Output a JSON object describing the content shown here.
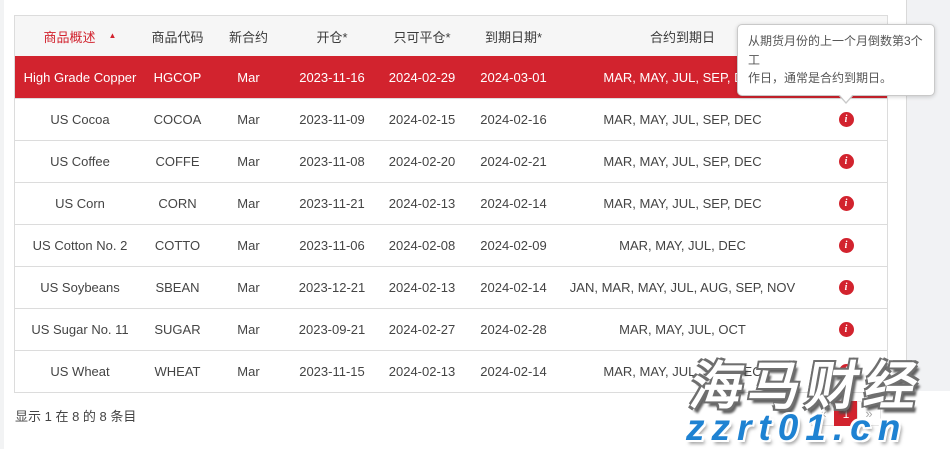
{
  "colors": {
    "accent_red": "#d2232e",
    "watermark_blue": "#1e82d2"
  },
  "tooltip": {
    "line1": "从期货月份的上一个月倒数第3个工",
    "line2": "作日，通常是合约到期日。"
  },
  "table": {
    "sort_icon": "▲",
    "info_icon_glyph": "i",
    "headers": {
      "overview": "商品概述",
      "code": "商品代码",
      "new_contract": "新合约",
      "open": "开仓*",
      "close_only": "只可平仓*",
      "expiry_date": "到期日期*",
      "contract_expiry": "合约到期日"
    },
    "rows": [
      {
        "name": "High Grade Copper",
        "code": "HGCOP",
        "new_contract": "Mar",
        "open": "2023-11-16",
        "close_only": "2024-02-29",
        "expiry_date": "2024-03-01",
        "months": "MAR, MAY, JUL, SEP, DEC"
      },
      {
        "name": "US Cocoa",
        "code": "COCOA",
        "new_contract": "Mar",
        "open": "2023-11-09",
        "close_only": "2024-02-15",
        "expiry_date": "2024-02-16",
        "months": "MAR, MAY, JUL, SEP, DEC"
      },
      {
        "name": "US Coffee",
        "code": "COFFE",
        "new_contract": "Mar",
        "open": "2023-11-08",
        "close_only": "2024-02-20",
        "expiry_date": "2024-02-21",
        "months": "MAR, MAY, JUL, SEP, DEC"
      },
      {
        "name": "US Corn",
        "code": "CORN",
        "new_contract": "Mar",
        "open": "2023-11-21",
        "close_only": "2024-02-13",
        "expiry_date": "2024-02-14",
        "months": "MAR, MAY, JUL, SEP, DEC"
      },
      {
        "name": "US Cotton No. 2",
        "code": "COTTO",
        "new_contract": "Mar",
        "open": "2023-11-06",
        "close_only": "2024-02-08",
        "expiry_date": "2024-02-09",
        "months": "MAR, MAY, JUL, DEC"
      },
      {
        "name": "US Soybeans",
        "code": "SBEAN",
        "new_contract": "Mar",
        "open": "2023-12-21",
        "close_only": "2024-02-13",
        "expiry_date": "2024-02-14",
        "months": "JAN, MAR, MAY, JUL, AUG, SEP, NOV"
      },
      {
        "name": "US Sugar No. 11",
        "code": "SUGAR",
        "new_contract": "Mar",
        "open": "2023-09-21",
        "close_only": "2024-02-27",
        "expiry_date": "2024-02-28",
        "months": "MAR, MAY, JUL, OCT"
      },
      {
        "name": "US Wheat",
        "code": "WHEAT",
        "new_contract": "Mar",
        "open": "2023-11-15",
        "close_only": "2024-02-13",
        "expiry_date": "2024-02-14",
        "months": "MAR, MAY, JUL, SEP, DEC"
      }
    ]
  },
  "footer": {
    "summary": "显示 1 在 8 的 8 条目"
  },
  "pagination": {
    "prev": "«",
    "page": "1",
    "next": "»"
  },
  "watermark": {
    "title": "海马财经",
    "url": "zzrt01.cn"
  }
}
